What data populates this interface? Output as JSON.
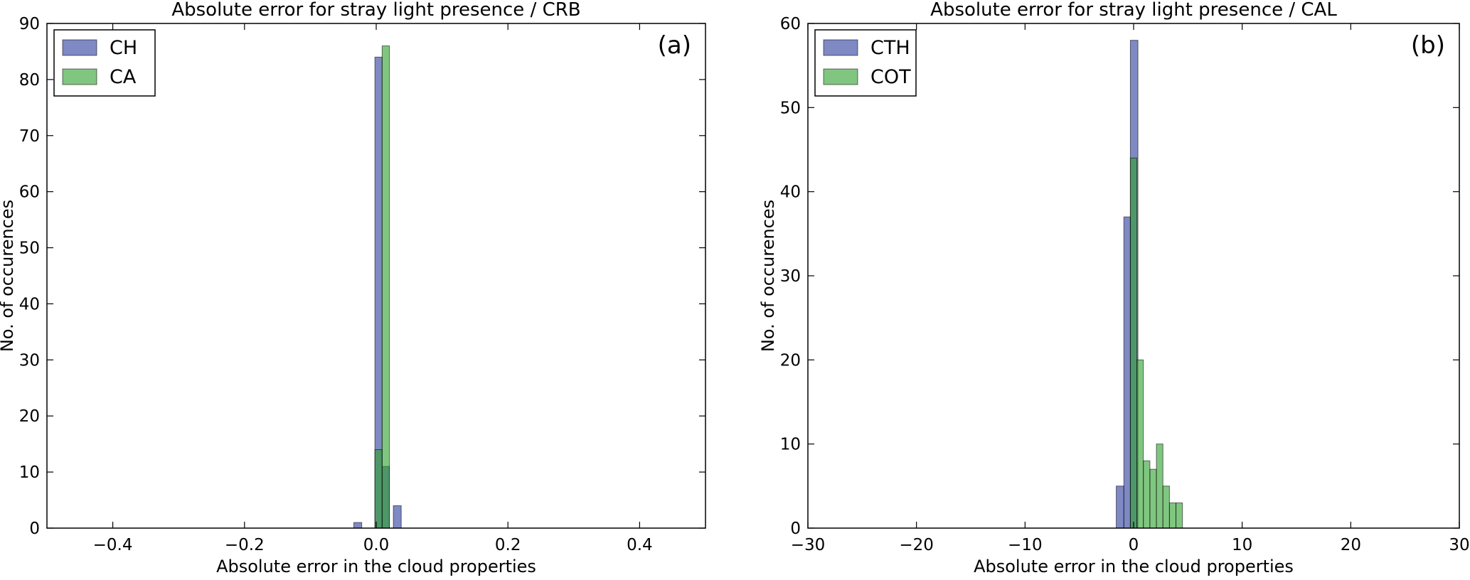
{
  "chart_data": [
    {
      "type": "bar",
      "title": "Absolute error for stray light presence / CRB",
      "xlabel": "Absolute error in the cloud properties",
      "ylabel": "No. of occurences",
      "panel_label": "(a)",
      "xlim": [
        -0.5,
        0.5
      ],
      "ylim": [
        0,
        90
      ],
      "xticks": [
        -0.4,
        -0.2,
        0.0,
        0.2,
        0.4
      ],
      "xtick_labels": [
        "−0.4",
        "−0.2",
        "0.0",
        "0.2",
        "0.4"
      ],
      "yticks": [
        0,
        10,
        20,
        30,
        40,
        50,
        60,
        70,
        80,
        90
      ],
      "ytick_labels": [
        "0",
        "10",
        "20",
        "30",
        "40",
        "50",
        "60",
        "70",
        "80",
        "90"
      ],
      "legend_position": "top-left",
      "grid": false,
      "series": [
        {
          "name": "CH",
          "color": "#2a3a9c",
          "bins": [
            {
              "x0": -0.034,
              "x1": -0.022,
              "count": 1
            },
            {
              "x0": -0.002,
              "x1": 0.009,
              "count": 84
            },
            {
              "x0": 0.009,
              "x1": 0.02,
              "count": 11
            },
            {
              "x0": 0.026,
              "x1": 0.038,
              "count": 4
            }
          ]
        },
        {
          "name": "CA",
          "color": "#2ca02c",
          "bins": [
            {
              "x0": -0.002,
              "x1": 0.009,
              "count": 14
            },
            {
              "x0": 0.009,
              "x1": 0.02,
              "count": 86
            }
          ]
        }
      ]
    },
    {
      "type": "bar",
      "title": "Absolute error for stray light presence / CAL",
      "xlabel": "Absolute error in the cloud properties",
      "ylabel": "No. of occurences",
      "panel_label": "(b)",
      "xlim": [
        -30,
        30
      ],
      "ylim": [
        0,
        60
      ],
      "xticks": [
        -30,
        -20,
        -10,
        0,
        10,
        20,
        30
      ],
      "xtick_labels": [
        "−30",
        "−20",
        "−10",
        "0",
        "10",
        "20",
        "30"
      ],
      "yticks": [
        0,
        10,
        20,
        30,
        40,
        50,
        60
      ],
      "ytick_labels": [
        "0",
        "10",
        "20",
        "30",
        "40",
        "50",
        "60"
      ],
      "legend_position": "top-left",
      "grid": false,
      "series": [
        {
          "name": "CTH",
          "color": "#2a3a9c",
          "bins": [
            {
              "x0": -1.6,
              "x1": -0.9,
              "count": 5
            },
            {
              "x0": -0.9,
              "x1": -0.3,
              "count": 37
            },
            {
              "x0": -0.3,
              "x1": 0.4,
              "count": 58
            }
          ]
        },
        {
          "name": "COT",
          "color": "#2ca02c",
          "bins": [
            {
              "x0": -0.3,
              "x1": 0.3,
              "count": 44
            },
            {
              "x0": 0.3,
              "x1": 0.9,
              "count": 20
            },
            {
              "x0": 0.9,
              "x1": 1.5,
              "count": 8
            },
            {
              "x0": 1.5,
              "x1": 2.1,
              "count": 7
            },
            {
              "x0": 2.1,
              "x1": 2.7,
              "count": 10
            },
            {
              "x0": 2.7,
              "x1": 3.3,
              "count": 5
            },
            {
              "x0": 3.3,
              "x1": 3.9,
              "count": 3
            },
            {
              "x0": 3.9,
              "x1": 4.5,
              "count": 3
            }
          ]
        }
      ]
    }
  ]
}
